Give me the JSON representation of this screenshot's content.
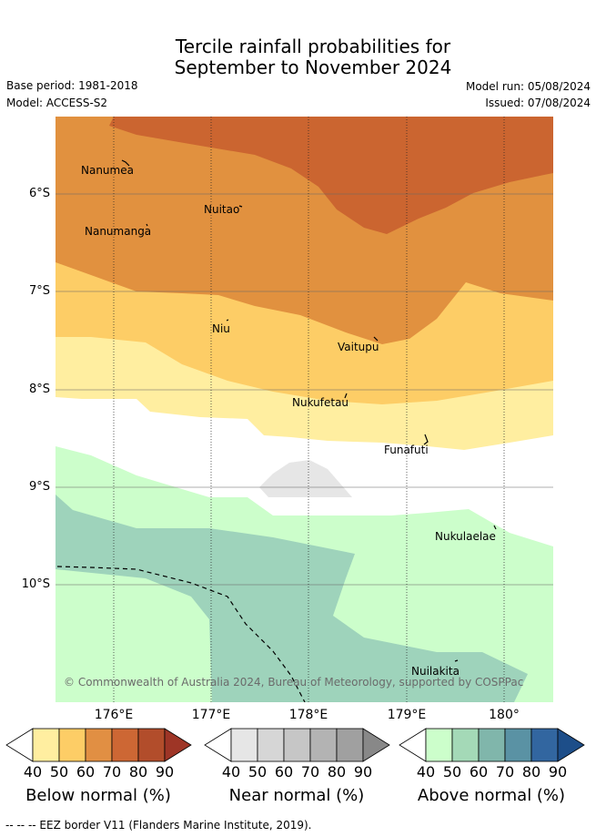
{
  "title_line1": "Tercile rainfall probabilities for",
  "title_line2": "September to November 2024",
  "base_period": "Base period: 1981-2018",
  "model": "Model: ACCESS-S2",
  "model_run": "Model run: 05/08/2024",
  "issued": "Issued: 07/08/2024",
  "copyright": "© Commonwealth of Australia 2024, Bureau of Meteorology, supported by COSPPac",
  "lat_labels": [
    "6°S",
    "7°S",
    "8°S",
    "9°S",
    "10°S"
  ],
  "lon_labels": [
    "176°E",
    "177°E",
    "178°E",
    "179°E",
    "180°"
  ],
  "islands": [
    "Nanumea",
    "Nuitao",
    "Nanumanga",
    "Niu",
    "Vaitupu",
    "Nukufetau",
    "Funafuti",
    "Nukulaelae",
    "Nuilakita"
  ],
  "colorbars": {
    "below": {
      "title": "Below normal (%)",
      "ticks": [
        "40",
        "50",
        "60",
        "70",
        "80",
        "90"
      ],
      "colors": [
        "#ffeea0",
        "#fdcd66",
        "#e18f43",
        "#cd6734",
        "#b24d2b",
        "#9e3526"
      ]
    },
    "near": {
      "title": "Near normal (%)",
      "ticks": [
        "40",
        "50",
        "60",
        "70",
        "80",
        "90"
      ],
      "colors": [
        "#e6e6e6",
        "#d6d6d6",
        "#c6c6c6",
        "#b3b3b3",
        "#a0a0a0",
        "#888888"
      ]
    },
    "above": {
      "title": "Above normal (%)",
      "ticks": [
        "40",
        "50",
        "60",
        "70",
        "80",
        "90"
      ],
      "colors": [
        "#ccfecb",
        "#a4d9b7",
        "#80b6ab",
        "#5a92a4",
        "#3266a0",
        "#1d4e89"
      ]
    }
  },
  "legend_footer": "--  --  -- EEZ border V11 (Flanders Marine Institute, 2019)."
}
